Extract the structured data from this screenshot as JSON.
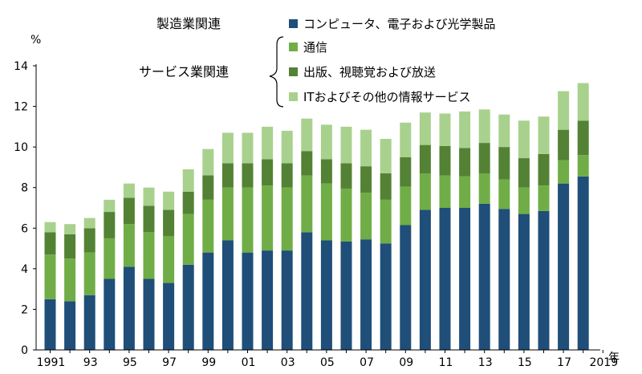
{
  "chart_data": {
    "type": "bar",
    "stacked": true,
    "title": "",
    "ylabel": "%",
    "xlabel": "年",
    "ylim": [
      0,
      14
    ],
    "yticks": [
      0,
      2,
      4,
      6,
      8,
      10,
      12,
      14
    ],
    "grid": false,
    "legend_position": "top-right",
    "categories": [
      "1991",
      "1992",
      "1993",
      "1994",
      "1995",
      "1996",
      "1997",
      "1998",
      "1999",
      "2000",
      "2001",
      "2002",
      "2003",
      "2004",
      "2005",
      "2006",
      "2007",
      "2008",
      "2009",
      "2010",
      "2011",
      "2012",
      "2013",
      "2014",
      "2015",
      "2016",
      "2017",
      "2018",
      "2019"
    ],
    "x_tick_labels": [
      "1991",
      "",
      "93",
      "",
      "95",
      "",
      "97",
      "",
      "99",
      "",
      "01",
      "",
      "03",
      "",
      "05",
      "",
      "07",
      "",
      "09",
      "",
      "11",
      "",
      "13",
      "",
      "15",
      "",
      "17",
      "",
      "2019"
    ],
    "group_labels": {
      "manufacturing": "製造業関連",
      "services": "サービス業関連"
    },
    "series": [
      {
        "name": "コンピュータ、電子および光学製品",
        "group": "manufacturing",
        "color": "#1f4e79",
        "values": [
          2.5,
          2.4,
          2.7,
          3.5,
          4.1,
          3.5,
          3.3,
          4.2,
          4.8,
          5.4,
          4.8,
          4.9,
          4.9,
          5.8,
          5.4,
          5.35,
          5.45,
          5.25,
          6.15,
          6.9,
          7.0,
          7.0,
          7.2,
          6.95,
          6.7,
          6.85,
          8.2,
          8.55,
          0
        ]
      },
      {
        "name": "通信",
        "group": "services",
        "color": "#70ad47",
        "values": [
          2.2,
          2.1,
          2.1,
          2.0,
          2.1,
          2.3,
          2.3,
          2.5,
          2.6,
          2.6,
          3.2,
          3.2,
          3.1,
          2.8,
          2.8,
          2.6,
          2.3,
          2.15,
          1.9,
          1.8,
          1.6,
          1.55,
          1.5,
          1.45,
          1.3,
          1.25,
          1.15,
          1.05,
          0
        ]
      },
      {
        "name": "出版、視聴覚および放送",
        "group": "services",
        "color": "#548235",
        "values": [
          1.1,
          1.2,
          1.2,
          1.3,
          1.3,
          1.3,
          1.3,
          1.1,
          1.2,
          1.2,
          1.2,
          1.3,
          1.2,
          1.2,
          1.2,
          1.25,
          1.3,
          1.3,
          1.45,
          1.4,
          1.45,
          1.4,
          1.5,
          1.6,
          1.45,
          1.55,
          1.5,
          1.7,
          0
        ]
      },
      {
        "name": "ITおよびその他の情報サービス",
        "group": "services",
        "color": "#a9d18e",
        "values": [
          0.5,
          0.5,
          0.5,
          0.6,
          0.7,
          0.9,
          0.9,
          1.1,
          1.3,
          1.5,
          1.5,
          1.6,
          1.6,
          1.6,
          1.7,
          1.8,
          1.8,
          1.7,
          1.7,
          1.6,
          1.6,
          1.8,
          1.65,
          1.6,
          1.85,
          1.85,
          1.9,
          1.85,
          0
        ]
      }
    ]
  }
}
